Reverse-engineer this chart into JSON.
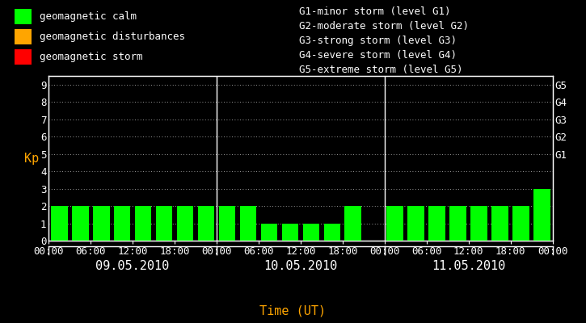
{
  "background_color": "#000000",
  "plot_bg_color": "#000000",
  "bar_color_calm": "#00ff00",
  "bar_color_disturbance": "#ffa500",
  "bar_color_storm": "#ff0000",
  "tick_color": "#ffffff",
  "spine_color": "#ffffff",
  "text_color": "#ffffff",
  "xlabel_color": "#ffa500",
  "ylabel_color": "#ffa500",
  "xlabel": "Time (UT)",
  "ylabel": "Kp",
  "ylim": [
    0,
    9.5
  ],
  "yticks": [
    0,
    1,
    2,
    3,
    4,
    5,
    6,
    7,
    8,
    9
  ],
  "right_labels": [
    {
      "y": 9,
      "label": "G5"
    },
    {
      "y": 8,
      "label": "G4"
    },
    {
      "y": 7,
      "label": "G3"
    },
    {
      "y": 6,
      "label": "G2"
    },
    {
      "y": 5,
      "label": "G1"
    }
  ],
  "legend_items": [
    {
      "color": "#00ff00",
      "label": "geomagnetic calm"
    },
    {
      "color": "#ffa500",
      "label": "geomagnetic disturbances"
    },
    {
      "color": "#ff0000",
      "label": "geomagnetic storm"
    }
  ],
  "storm_legend": [
    "G1-minor storm (level G1)",
    "G2-moderate storm (level G2)",
    "G3-strong storm (level G3)",
    "G4-severe storm (level G4)",
    "G5-extreme storm (level G5)"
  ],
  "days": [
    "09.05.2010",
    "10.05.2010",
    "11.05.2010"
  ],
  "kp_values": [
    2,
    2,
    2,
    2,
    2,
    2,
    2,
    2,
    2,
    2,
    1,
    1,
    1,
    1,
    2,
    0,
    2,
    2,
    2,
    2,
    2,
    2,
    2,
    3
  ],
  "n_intervals_per_day": 8,
  "bar_width": 0.8,
  "font_family": "monospace",
  "font_size": 9
}
